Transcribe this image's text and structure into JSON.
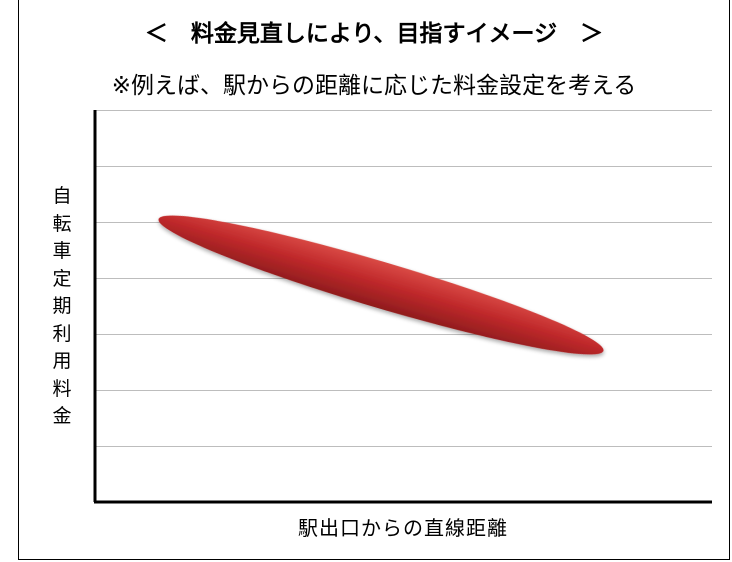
{
  "title": "＜　料金見直しにより、目指すイメージ　＞",
  "subtitle": "※例えば、駅からの距離に応じた料金設定を考える",
  "chart_data": {
    "type": "diagram",
    "xlabel": "駅出口からの直線距離",
    "ylabel": "自転車定期利用料金",
    "grid": true,
    "gridline_count": 7,
    "trend": "decreasing",
    "band_color": "#c0292b",
    "band_highlight_color": "#d94a45",
    "band_shadow_color": "#8f1c1d"
  }
}
